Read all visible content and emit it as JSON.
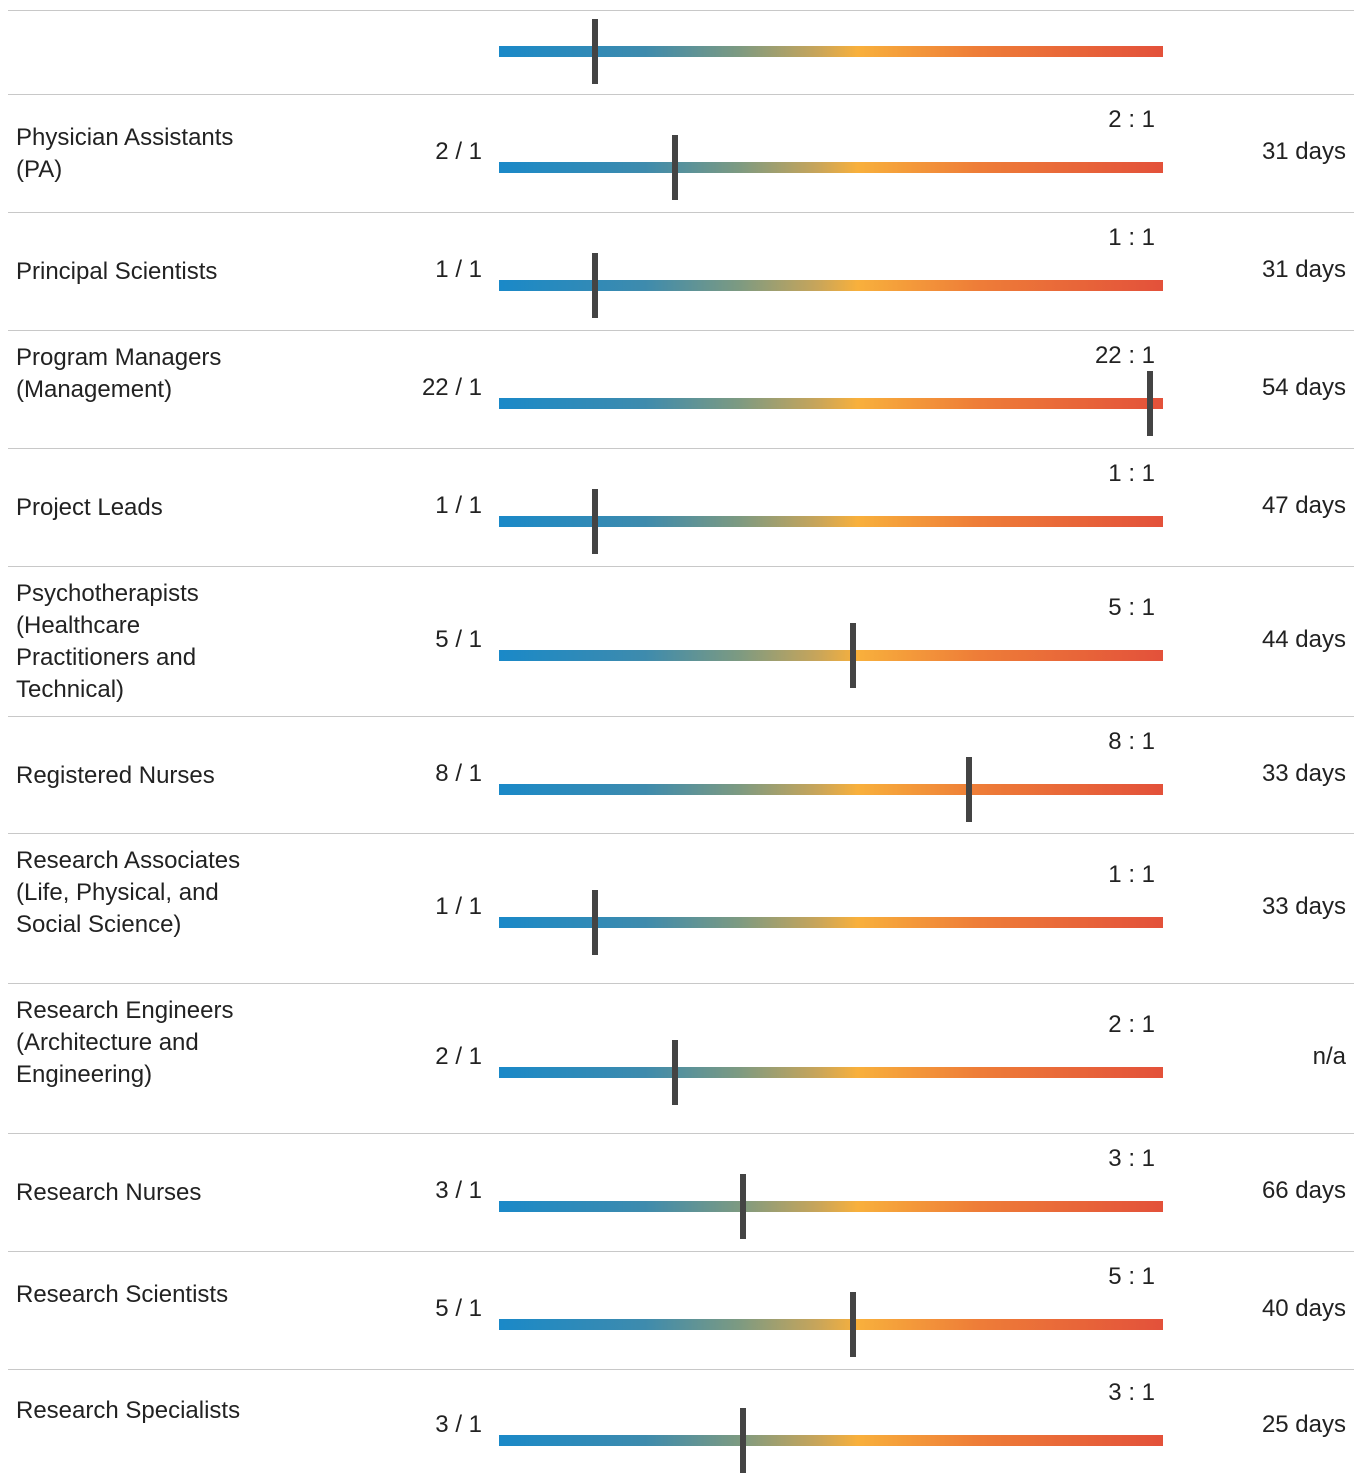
{
  "scale": {
    "min_ratio": 0,
    "max_ratio": 22
  },
  "colors": {
    "bar_start": "#1a89c8",
    "bar_mid": "#f8b03c",
    "bar_end": "#e3513a",
    "marker": "#444444",
    "divider": "#c8c8c8"
  },
  "rows": [
    {
      "role": "",
      "ratio": "",
      "ratio_value": 1,
      "track_label": "",
      "days": ""
    },
    {
      "role": "Physician Assistants (PA)",
      "ratio": "2 / 1",
      "ratio_value": 2,
      "track_label": "2 : 1",
      "days": "31 days"
    },
    {
      "role": "Principal Scientists",
      "ratio": "1 / 1",
      "ratio_value": 1,
      "track_label": "1 : 1",
      "days": "31 days"
    },
    {
      "role": "Program Managers (Management)",
      "ratio": "22 / 1",
      "ratio_value": 22,
      "track_label": "22 : 1",
      "days": "54 days"
    },
    {
      "role": "Project Leads",
      "ratio": "1 / 1",
      "ratio_value": 1,
      "track_label": "1 : 1",
      "days": "47 days"
    },
    {
      "role": "Psychotherapists (Healthcare Practitioners and Technical)",
      "ratio": "5 / 1",
      "ratio_value": 5,
      "track_label": "5 : 1",
      "days": "44 days"
    },
    {
      "role": "Registered Nurses",
      "ratio": "8 / 1",
      "ratio_value": 8,
      "track_label": "8 : 1",
      "days": "33 days"
    },
    {
      "role": "Research Associates (Life, Physical, and Social Science)",
      "ratio": "1 / 1",
      "ratio_value": 1,
      "track_label": "1 : 1",
      "days": "33 days"
    },
    {
      "role": "Research Engineers (Architecture and Engineering)",
      "ratio": "2 / 1",
      "ratio_value": 2,
      "track_label": "2 : 1",
      "days": "n/a"
    },
    {
      "role": "Research Nurses",
      "ratio": "3 / 1",
      "ratio_value": 3,
      "track_label": "3 : 1",
      "days": "66 days"
    },
    {
      "role": "Research Scientists",
      "ratio": "5 / 1",
      "ratio_value": 5,
      "track_label": "5 : 1",
      "days": "40 days"
    },
    {
      "role": "Research Specialists",
      "ratio": "3 / 1",
      "ratio_value": 3,
      "track_label": "3 : 1",
      "days": "25 days"
    }
  ]
}
